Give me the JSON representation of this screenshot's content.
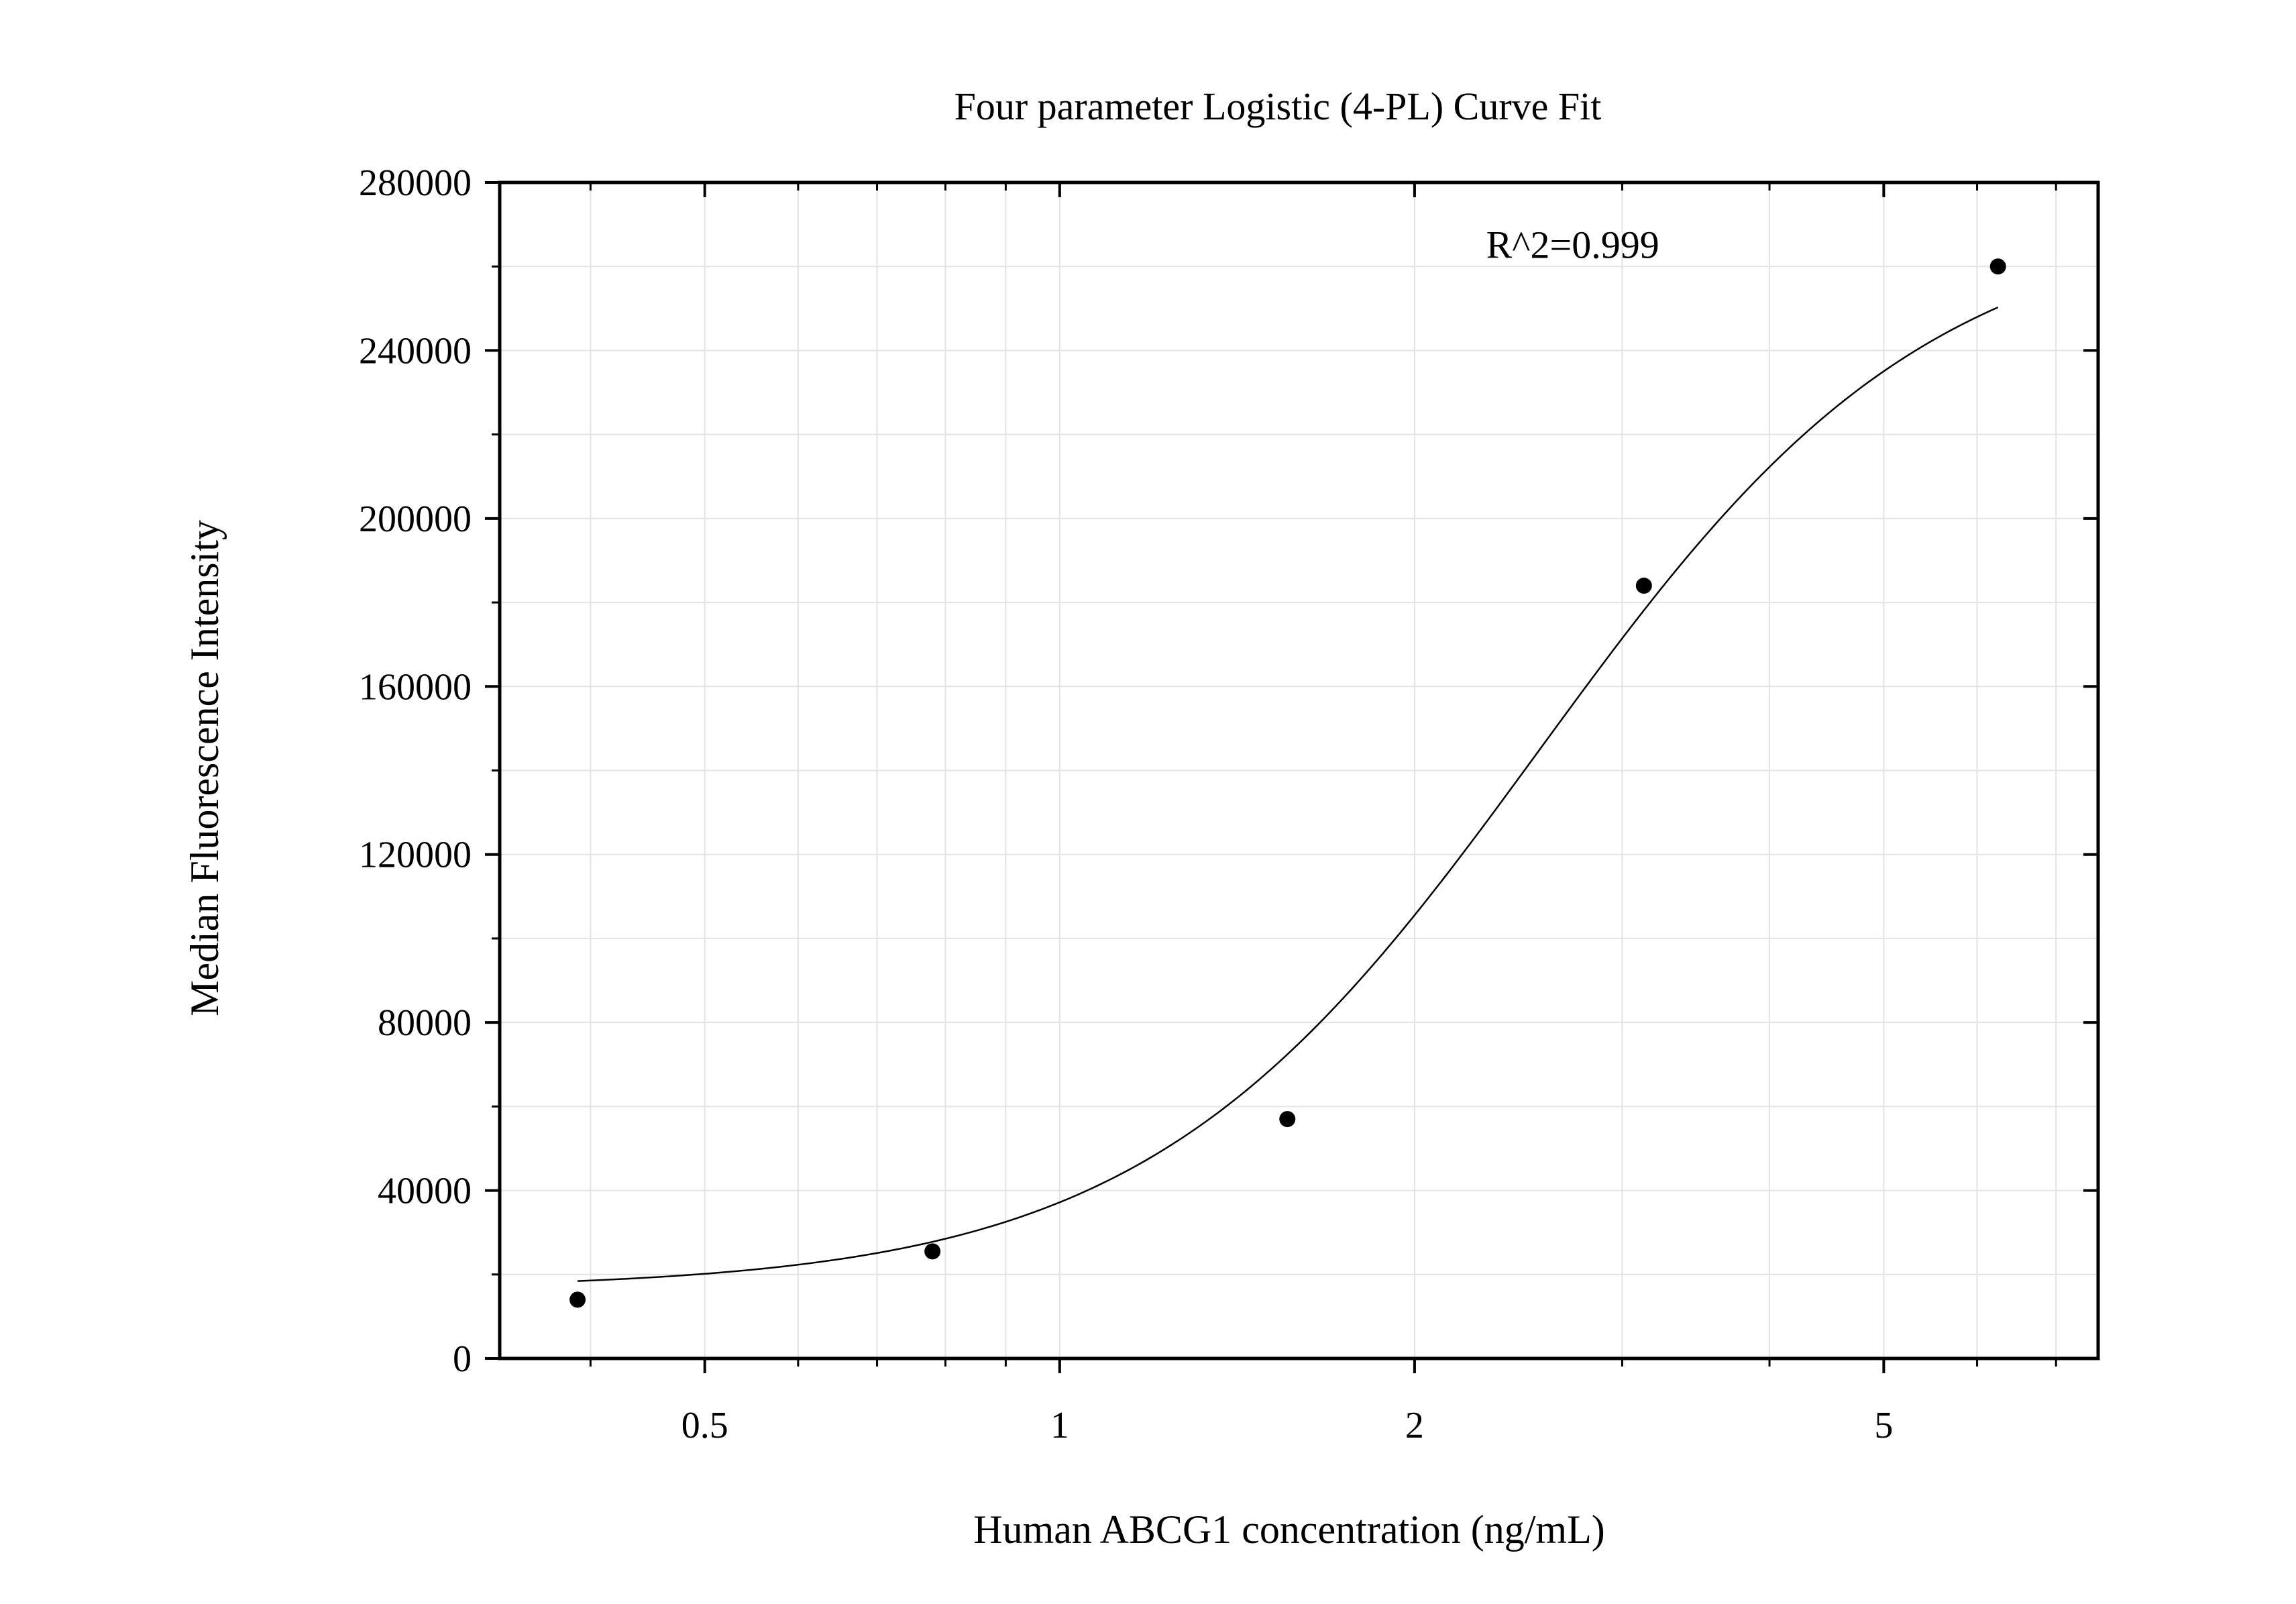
{
  "chart_data": {
    "type": "scatter",
    "title": "Four parameter Logistic (4-PL) Curve Fit",
    "xlabel": "Human ABCG1 concentration (ng/mL)",
    "ylabel": "Median Fluorescence Intensity",
    "x_scale": "log",
    "xlim": [
      0.335,
      7.6
    ],
    "ylim": [
      0,
      280000
    ],
    "x_ticks": [
      0.5,
      1,
      2,
      5
    ],
    "x_tick_labels": [
      "0.5",
      "1",
      "2",
      "5"
    ],
    "x_minor_ticks": [
      0.4,
      0.6,
      0.7,
      0.8,
      0.9,
      3,
      4,
      6,
      7
    ],
    "y_ticks": [
      0,
      40000,
      80000,
      120000,
      160000,
      200000,
      240000,
      280000
    ],
    "y_tick_labels": [
      "0",
      "40000",
      "80000",
      "120000",
      "160000",
      "200000",
      "240000",
      "280000"
    ],
    "grid": true,
    "series": [
      {
        "x": [
          0.39,
          0.78,
          1.56,
          3.13,
          6.25
        ],
        "y": [
          14000,
          25500,
          57000,
          184000,
          260000
        ]
      }
    ],
    "fit": {
      "type": "4-PL",
      "bottom": 16500,
      "top": 273000,
      "ec50": 2.55,
      "hill": 2.6
    },
    "annotations": [
      {
        "text": "R^2=0.999",
        "x": 2.3,
        "y": 262000
      }
    ]
  }
}
